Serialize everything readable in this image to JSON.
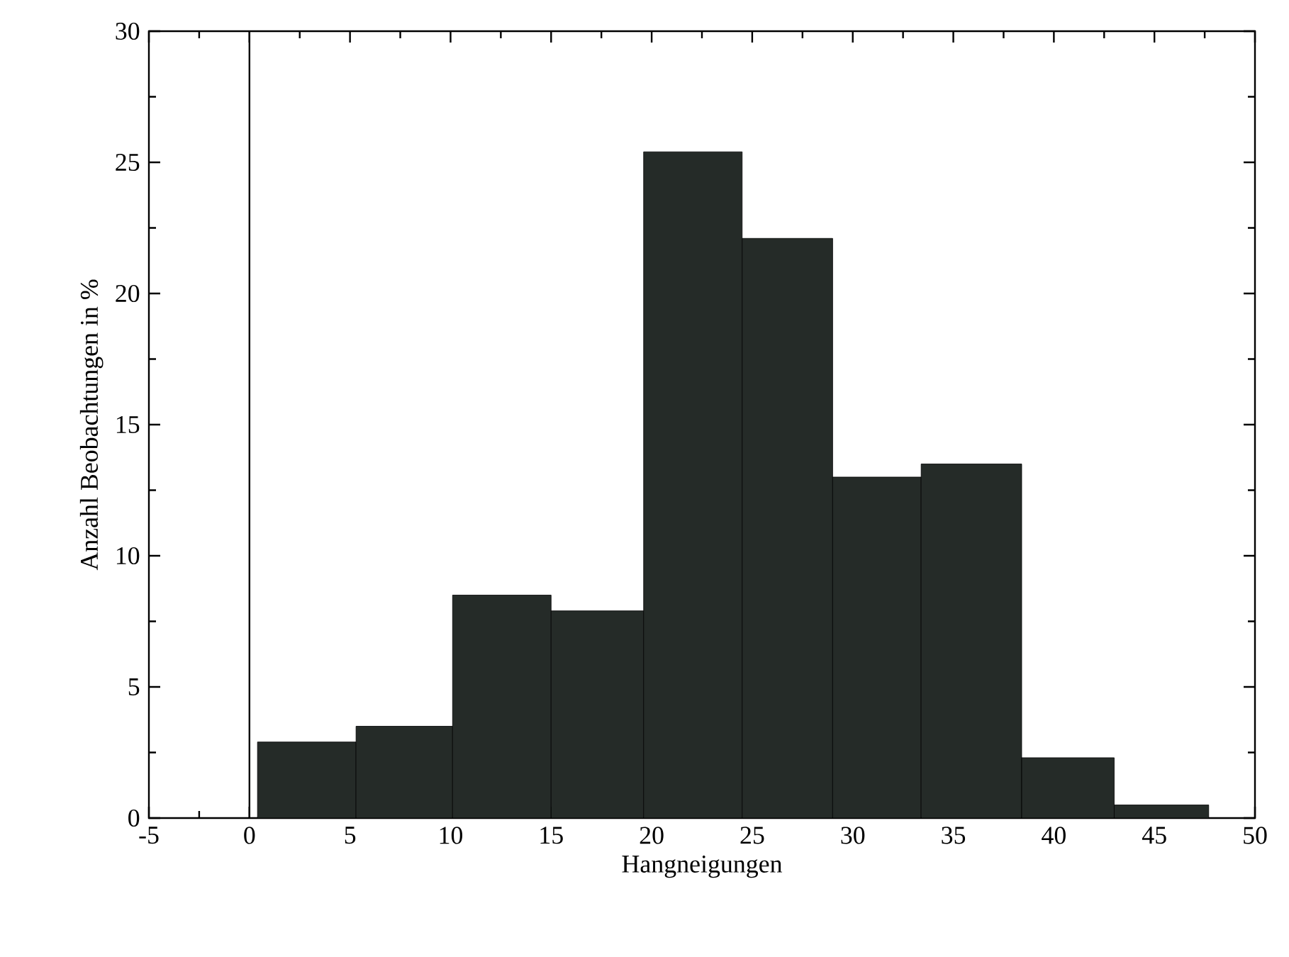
{
  "chart_data": {
    "type": "histogram",
    "xlabel": "Hangneigungen",
    "ylabel": "Anzahl Beobachtungen in %",
    "bins": [
      0.4,
      5.3,
      10.1,
      15.0,
      19.6,
      24.5,
      29.0,
      33.4,
      38.4,
      43.0,
      47.7
    ],
    "values": [
      2.9,
      3.5,
      8.5,
      7.9,
      25.4,
      22.1,
      13.0,
      13.5,
      2.3,
      0.5
    ],
    "color": "#252b28",
    "xlim": [
      -5,
      50
    ],
    "xticks": [
      -5,
      0,
      5,
      10,
      15,
      20,
      25,
      30,
      35,
      40,
      45,
      50
    ],
    "ylim": [
      0,
      30
    ],
    "yticks": [
      0,
      5,
      10,
      15,
      20,
      25,
      30
    ],
    "ref_lines": [
      {
        "axis": "x",
        "value": 0
      }
    ],
    "grid": false
  }
}
